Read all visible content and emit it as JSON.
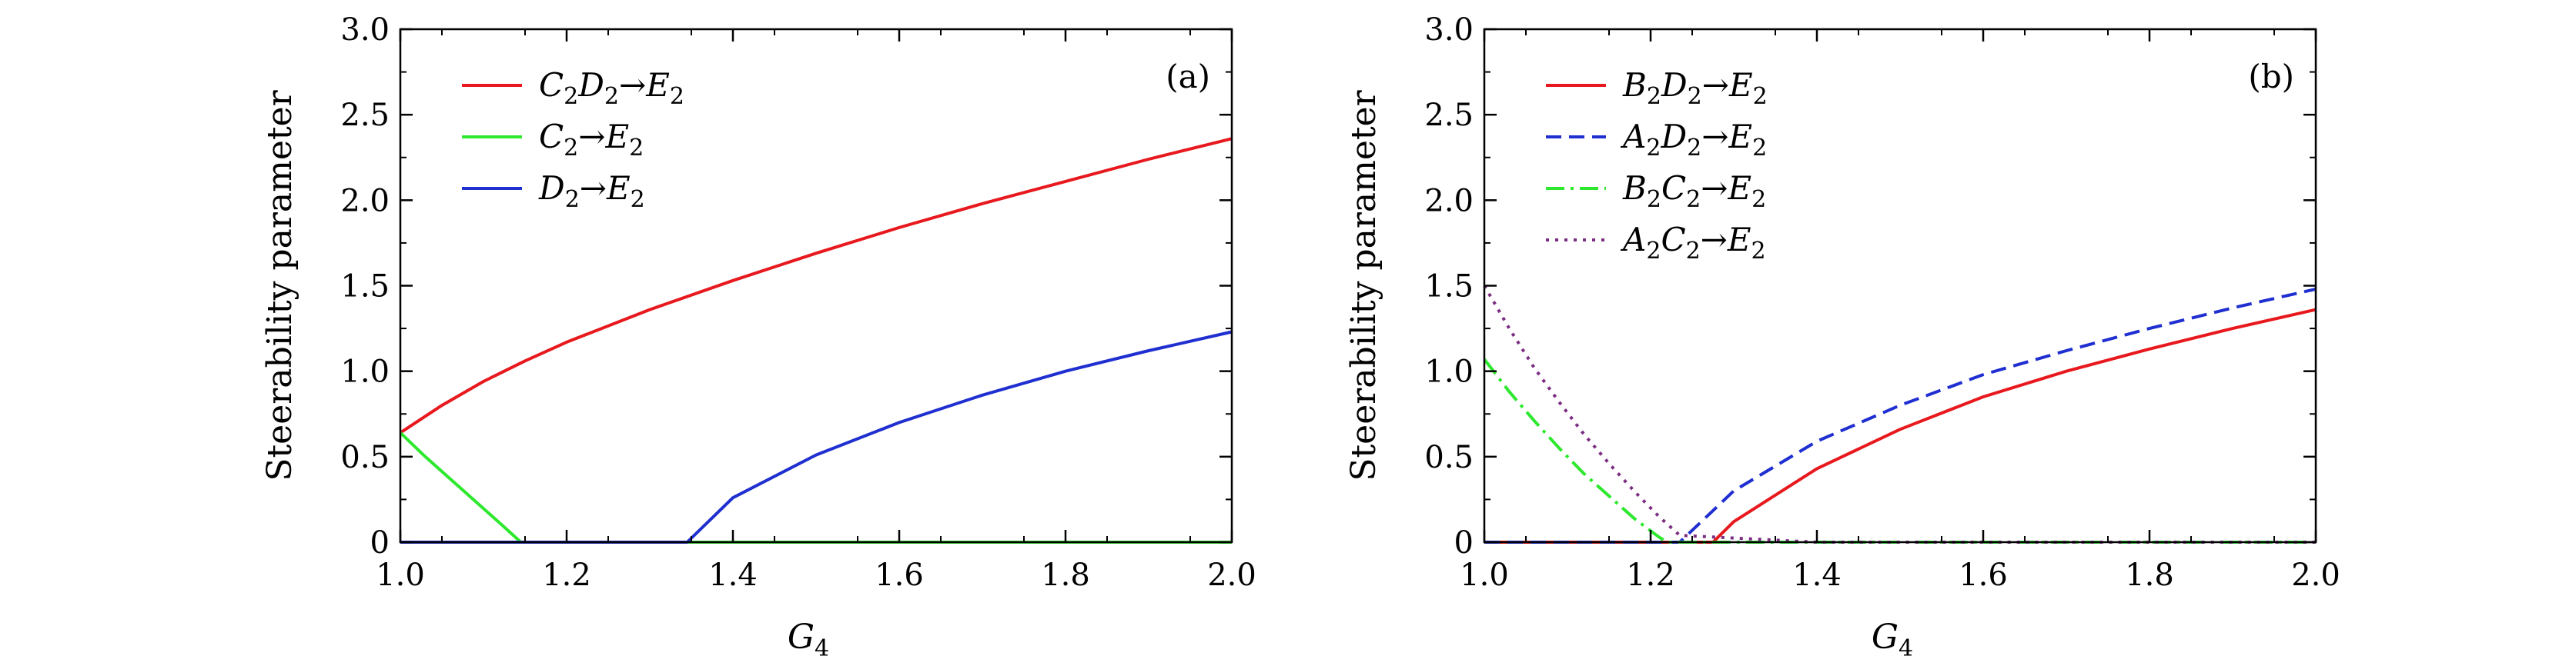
{
  "chart_data": [
    {
      "type": "line",
      "panel_label": "(a)",
      "xlabel_main": "G",
      "xlabel_sub": "4",
      "ylabel": "Steerability parameter",
      "xlim": [
        1.0,
        2.0
      ],
      "ylim": [
        0,
        3.0
      ],
      "xticks": [
        "1.0",
        "1.2",
        "1.4",
        "1.6",
        "1.8",
        "2.0"
      ],
      "yticks": [
        "0",
        "0.5",
        "1.0",
        "1.5",
        "2.0",
        "2.5",
        "3.0"
      ],
      "legend_position": "top-left",
      "series": [
        {
          "label": [
            "C",
            "2",
            "D",
            "2",
            "→",
            "E",
            "2"
          ],
          "color": "#e8191e",
          "dash": "solid",
          "x": [
            1.0,
            1.05,
            1.1,
            1.15,
            1.2,
            1.3,
            1.4,
            1.5,
            1.6,
            1.7,
            1.8,
            1.9,
            2.0
          ],
          "y": [
            0.64,
            0.8,
            0.94,
            1.06,
            1.17,
            1.36,
            1.53,
            1.69,
            1.84,
            1.98,
            2.11,
            2.24,
            2.36
          ]
        },
        {
          "label": [
            "C",
            "2",
            "→",
            "E",
            "2"
          ],
          "color": "#2ee82e",
          "dash": "solid",
          "x": [
            1.0,
            1.03,
            1.06,
            1.09,
            1.12,
            1.145,
            1.2,
            1.4,
            1.6,
            1.8,
            2.0
          ],
          "y": [
            0.64,
            0.5,
            0.37,
            0.24,
            0.11,
            0.0,
            0.0,
            0.0,
            0.0,
            0.0,
            0.0
          ]
        },
        {
          "label": [
            "D",
            "2",
            "→",
            "E",
            "2"
          ],
          "color": "#1f2fd0",
          "dash": "solid",
          "x": [
            1.0,
            1.2,
            1.345,
            1.4,
            1.5,
            1.6,
            1.7,
            1.8,
            1.9,
            2.0
          ],
          "y": [
            0.0,
            0.0,
            0.0,
            0.26,
            0.51,
            0.7,
            0.86,
            1.0,
            1.12,
            1.23
          ]
        }
      ]
    },
    {
      "type": "line",
      "panel_label": "(b)",
      "xlabel_main": "G",
      "xlabel_sub": "4",
      "ylabel": "Steerability parameter",
      "xlim": [
        1.0,
        2.0
      ],
      "ylim": [
        0,
        3.0
      ],
      "xticks": [
        "1.0",
        "1.2",
        "1.4",
        "1.6",
        "1.8",
        "2.0"
      ],
      "yticks": [
        "0",
        "0.5",
        "1.0",
        "1.5",
        "2.0",
        "2.5",
        "3.0"
      ],
      "legend_position": "top-left",
      "series": [
        {
          "label": [
            "B",
            "2",
            "D",
            "2",
            "→",
            "E",
            "2"
          ],
          "color": "#e8191e",
          "dash": "solid",
          "x": [
            1.0,
            1.2,
            1.275,
            1.3,
            1.4,
            1.5,
            1.6,
            1.7,
            1.8,
            1.9,
            2.0
          ],
          "y": [
            0.0,
            0.0,
            0.0,
            0.12,
            0.43,
            0.66,
            0.85,
            1.0,
            1.13,
            1.25,
            1.36
          ]
        },
        {
          "label": [
            "A",
            "2",
            "D",
            "2",
            "→",
            "E",
            "2"
          ],
          "color": "#1f2fd0",
          "dash": "dashed",
          "x": [
            1.0,
            1.2,
            1.235,
            1.3,
            1.4,
            1.5,
            1.6,
            1.7,
            1.8,
            1.9,
            2.0
          ],
          "y": [
            0.0,
            0.0,
            0.0,
            0.3,
            0.59,
            0.8,
            0.98,
            1.12,
            1.25,
            1.37,
            1.48
          ]
        },
        {
          "label": [
            "B",
            "2",
            "C",
            "2",
            "→",
            "E",
            "2"
          ],
          "color": "#2ee82e",
          "dash": "dashdot",
          "x": [
            1.0,
            1.03,
            1.06,
            1.09,
            1.12,
            1.15,
            1.18,
            1.21,
            1.22,
            1.4,
            1.6,
            1.8,
            2.0
          ],
          "y": [
            1.07,
            0.88,
            0.71,
            0.55,
            0.4,
            0.27,
            0.14,
            0.03,
            0.0,
            0.0,
            0.0,
            0.0,
            0.0
          ]
        },
        {
          "label": [
            "A",
            "2",
            "C",
            "2",
            "→",
            "E",
            "2"
          ],
          "color": "#7b2d82",
          "dash": "dotted",
          "x": [
            1.0,
            1.03,
            1.06,
            1.09,
            1.12,
            1.15,
            1.18,
            1.21,
            1.235,
            1.4,
            1.6,
            1.8,
            2.0
          ],
          "y": [
            1.5,
            1.25,
            1.02,
            0.82,
            0.63,
            0.46,
            0.3,
            0.15,
            0.04,
            0.0,
            0.0,
            0.0,
            0.0
          ]
        }
      ]
    }
  ]
}
